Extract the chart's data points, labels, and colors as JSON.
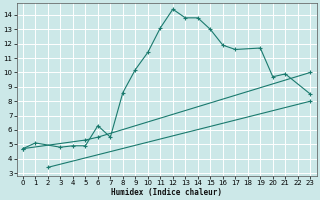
{
  "xlabel": "Humidex (Indice chaleur)",
  "bg_color": "#cce8e8",
  "grid_color": "#ffffff",
  "line_color": "#1a7a6e",
  "xlim": [
    -0.5,
    23.5
  ],
  "ylim": [
    2.8,
    14.8
  ],
  "xticks": [
    0,
    1,
    2,
    3,
    4,
    5,
    6,
    7,
    8,
    9,
    10,
    11,
    12,
    13,
    14,
    15,
    16,
    17,
    18,
    19,
    20,
    21,
    22,
    23
  ],
  "yticks": [
    3,
    4,
    5,
    6,
    7,
    8,
    9,
    10,
    11,
    12,
    13,
    14
  ],
  "line1_x": [
    0,
    1,
    3,
    4,
    5,
    6,
    7,
    8,
    9,
    10,
    11,
    12,
    13,
    14,
    15,
    16,
    17,
    19,
    20,
    21,
    23
  ],
  "line1_y": [
    4.7,
    5.1,
    4.8,
    4.9,
    4.9,
    6.3,
    5.5,
    8.6,
    10.2,
    11.4,
    13.1,
    14.4,
    13.8,
    13.8,
    13.0,
    11.9,
    11.6,
    11.7,
    9.7,
    9.9,
    8.5
  ],
  "line2_x": [
    0,
    5,
    6,
    23
  ],
  "line2_y": [
    4.7,
    5.3,
    5.5,
    10.0
  ],
  "line3_x": [
    2,
    23
  ],
  "line3_y": [
    3.4,
    8.0
  ]
}
